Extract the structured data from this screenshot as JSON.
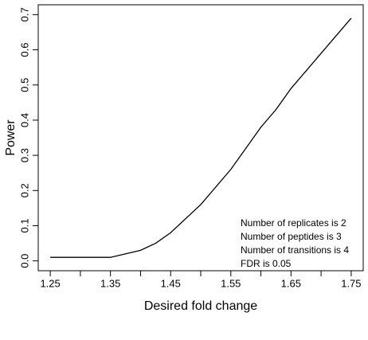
{
  "chart_data": {
    "type": "line",
    "x_label": "Desired fold change",
    "y_label": "Power",
    "x": [
      1.25,
      1.3,
      1.35,
      1.4,
      1.425,
      1.45,
      1.5,
      1.55,
      1.6,
      1.625,
      1.65,
      1.7,
      1.75
    ],
    "values": [
      0.01,
      0.01,
      0.01,
      0.03,
      0.05,
      0.08,
      0.16,
      0.26,
      0.38,
      0.43,
      0.49,
      0.59,
      0.69
    ],
    "color": "#000000",
    "xlim": [
      1.23,
      1.77
    ],
    "ylim": [
      -0.028,
      0.728
    ],
    "xticks": [
      1.25,
      1.35,
      1.45,
      1.55,
      1.65,
      1.75
    ],
    "xticks_minor": [
      1.3,
      1.4,
      1.5,
      1.6,
      1.7
    ],
    "yticks": [
      {
        "value": 0,
        "label": "0.0"
      },
      0.1,
      0.2,
      0.3,
      0.4,
      0.5,
      0.6,
      0.7
    ],
    "annotations": [
      "Number of replicates is 2",
      "Number of peptides is 3",
      "Number of transitions is 4",
      "FDR is 0.05"
    ],
    "grid": false
  }
}
